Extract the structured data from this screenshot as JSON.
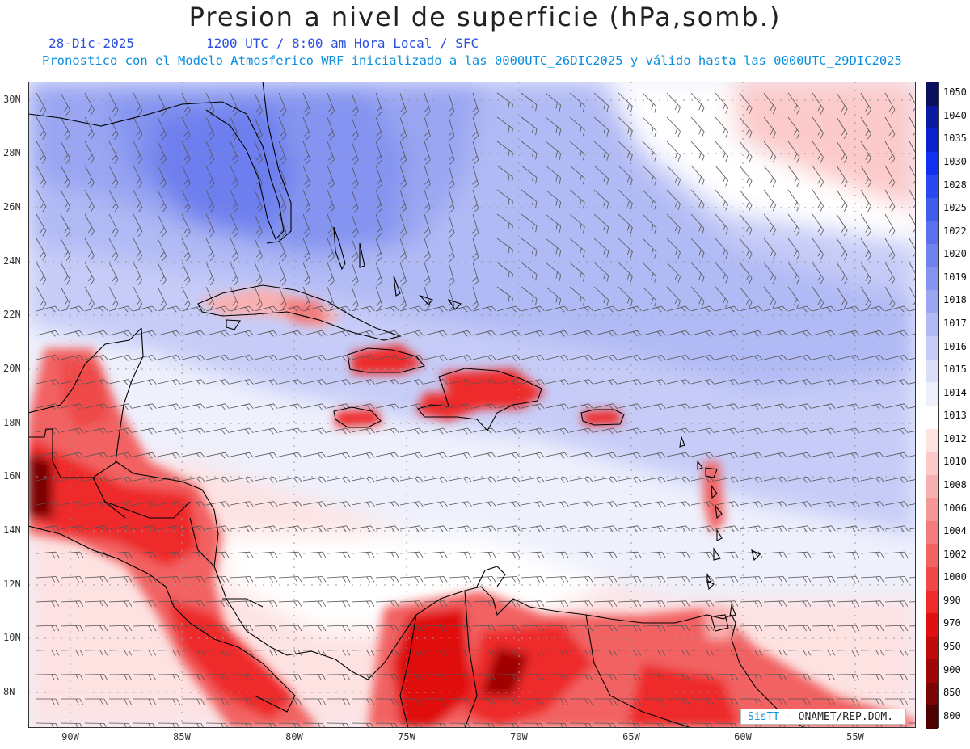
{
  "header": {
    "title": "Presion a nivel de superficie (hPa,somb.)",
    "date": "28-Dic-2025",
    "valid_time": "1200 UTC / 8:00 am Hora Local / SFC",
    "model_info": "Pronostico con el Modelo Atmosferico WRF inicializado a las 0000UTC_26DIC2025 y válido hasta las  0000UTC_29DIC2025"
  },
  "axes": {
    "lat_labels": [
      "30N",
      "28N",
      "26N",
      "24N",
      "22N",
      "20N",
      "18N",
      "16N",
      "14N",
      "12N",
      "10N",
      "8N"
    ],
    "lon_labels": [
      "90W",
      "85W",
      "80W",
      "75W",
      "70W",
      "65W",
      "60W",
      "55W"
    ]
  },
  "colorbar": {
    "levels": [
      "1050",
      "1040",
      "1035",
      "1030",
      "1028",
      "1025",
      "1022",
      "1020",
      "1019",
      "1018",
      "1017",
      "1016",
      "1015",
      "1014",
      "1013",
      "1012",
      "1010",
      "1008",
      "1006",
      "1004",
      "1002",
      "1000",
      "990",
      "970",
      "950",
      "900",
      "850",
      "800"
    ],
    "colors": [
      "#0a1060",
      "#0a1aa0",
      "#0a22cc",
      "#1030f0",
      "#2a48f0",
      "#3f5cec",
      "#5a70ec",
      "#7082ee",
      "#8494f0",
      "#9aa6f2",
      "#b0baf4",
      "#c6ccf7",
      "#dadef9",
      "#eef0fc",
      "#ffffff",
      "#fde2e2",
      "#fccaca",
      "#f9b0b0",
      "#f79696",
      "#f47c7c",
      "#f26262",
      "#f04848",
      "#ee2a2a",
      "#e01010",
      "#c00a0a",
      "#a00606",
      "#7a0404",
      "#500202"
    ]
  },
  "credit": {
    "brand": "SisTT",
    "org": "- ONAMET/REP.DOM."
  }
}
